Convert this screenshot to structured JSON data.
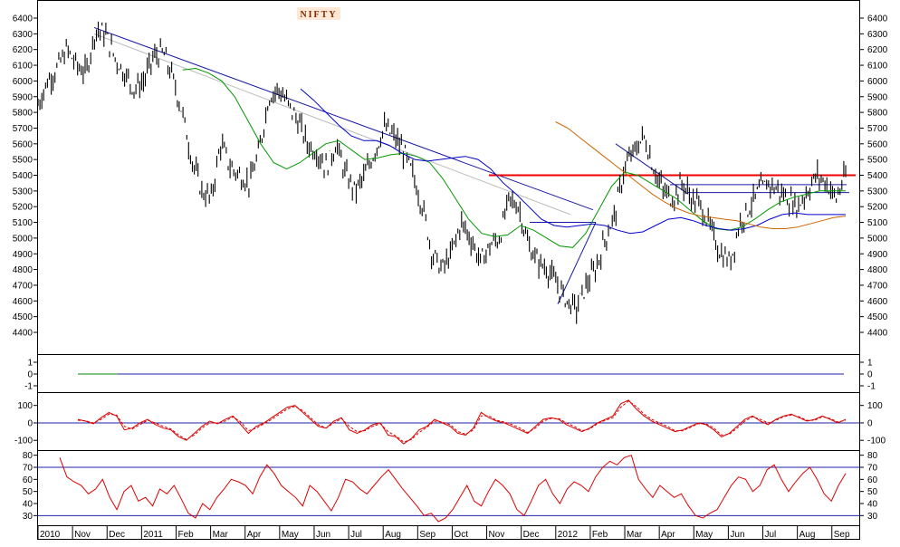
{
  "chart_data": [
    {
      "panel": "price",
      "type": "candlestick",
      "title": "NIFTY",
      "ylim": [
        4400,
        6400
      ],
      "yticks": [
        4400,
        4500,
        4600,
        4700,
        4800,
        4900,
        5000,
        5100,
        5200,
        5300,
        5400,
        5500,
        5600,
        5700,
        5800,
        5900,
        6000,
        6100,
        6200,
        6300,
        6400
      ],
      "x_month_labels": [
        "2010",
        "Nov",
        "Dec",
        "2011",
        "Feb",
        "Mar",
        "Apr",
        "May",
        "Jun",
        "Jul",
        "Aug",
        "Sep",
        "Oct",
        "Nov",
        "Dec",
        "2012",
        "Feb",
        "Mar",
        "Apr",
        "May",
        "Jun",
        "Jul",
        "Aug",
        "Sep"
      ],
      "price_path": [
        5850,
        6000,
        6080,
        6200,
        6100,
        6050,
        6330,
        6300,
        6150,
        6050,
        5950,
        6000,
        6150,
        6180,
        6020,
        5800,
        5500,
        5300,
        5250,
        5600,
        5450,
        5400,
        5350,
        5550,
        5900,
        5950,
        5850,
        5750,
        5600,
        5550,
        5450,
        5600,
        5400,
        5300,
        5400,
        5550,
        5700,
        5650,
        5550,
        5400,
        5200,
        4900,
        4800,
        4900,
        5100,
        5000,
        4850,
        4950,
        5000,
        5250,
        5200,
        4950,
        4850,
        4800,
        4700,
        4600,
        4550,
        4700,
        4800,
        5000,
        5150,
        5450,
        5550,
        5650,
        5450,
        5300,
        5250,
        5350,
        5250,
        5200,
        5050,
        4900,
        4850,
        5100,
        5200,
        5300,
        5350,
        5300,
        5250,
        5200,
        5300,
        5400,
        5350,
        5250,
        5400
      ],
      "ma_short": {
        "name": "",
        "color": "#009900",
        "values": [
          null,
          null,
          null,
          null,
          null,
          6070,
          6080,
          6050,
          6000,
          5900,
          5750,
          5600,
          5480,
          5440,
          5480,
          5540,
          5600,
          5620,
          5560,
          5500,
          5510,
          5530,
          5540,
          5520,
          5480,
          5380,
          5250,
          5120,
          5030,
          5010,
          5020,
          5080,
          5050,
          5000,
          4950,
          4940,
          5030,
          5180,
          5330,
          5420,
          5400,
          5350,
          5300,
          5250,
          5180,
          5110,
          5060,
          5050,
          5070,
          5120,
          5180,
          5230,
          5260,
          5280,
          5300,
          5300,
          5300
        ]
      },
      "ma_mid": {
        "name": "",
        "color": "#0000cc",
        "values": [
          null,
          null,
          null,
          null,
          null,
          null,
          null,
          null,
          5950,
          5880,
          5800,
          5720,
          5650,
          5620,
          5620,
          5590,
          5540,
          5500,
          5490,
          5500,
          5510,
          5520,
          5500,
          5440,
          5350,
          5280,
          5200,
          5120,
          5080,
          5070,
          5080,
          5090,
          5080,
          5050,
          5030,
          5040,
          5080,
          5120,
          5130,
          5110,
          5080,
          5060,
          5050,
          5060,
          5080,
          5120,
          5150,
          5160,
          5150,
          5150,
          5150,
          5150
        ]
      },
      "ma_long": {
        "name": "",
        "color": "#cc6600",
        "values": [
          null,
          null,
          null,
          null,
          null,
          null,
          null,
          null,
          null,
          null,
          null,
          null,
          null,
          null,
          null,
          null,
          5740,
          5700,
          5640,
          5580,
          5520,
          5460,
          5400,
          5340,
          5280,
          5230,
          5190,
          5160,
          5140,
          5130,
          5120,
          5110,
          5090,
          5070,
          5060,
          5060,
          5070,
          5090,
          5110,
          5130,
          5140
        ]
      },
      "horizontal_line": {
        "value": 5400,
        "color": "#ee0000"
      }
    },
    {
      "panel": "indicator_1",
      "type": "line",
      "ylim": [
        -1,
        1
      ],
      "yticks": [
        1,
        0,
        -1
      ],
      "zero_line": 0,
      "series": [
        {
          "name": "",
          "color": "#008800",
          "values": [
            0,
            0
          ]
        }
      ]
    },
    {
      "panel": "oscillator",
      "type": "line",
      "ylim": [
        -130,
        140
      ],
      "yticks": [
        100,
        0,
        -100
      ],
      "zero_line": 0,
      "series": [
        {
          "name": "",
          "color": "#dd0000",
          "dashed": false,
          "values": [
            20,
            10,
            -5,
            30,
            60,
            40,
            -40,
            -30,
            0,
            20,
            -10,
            -30,
            -40,
            -80,
            -100,
            -60,
            -20,
            10,
            -5,
            20,
            40,
            -10,
            -60,
            -20,
            0,
            30,
            60,
            90,
            100,
            60,
            20,
            -20,
            -30,
            10,
            30,
            -40,
            -60,
            -40,
            -10,
            0,
            -70,
            -80,
            -120,
            -90,
            -40,
            -20,
            20,
            0,
            -20,
            -60,
            -70,
            -30,
            60,
            30,
            10,
            0,
            -20,
            -40,
            -60,
            -20,
            20,
            30,
            20,
            -10,
            -30,
            -50,
            -30,
            0,
            20,
            40,
            110,
            130,
            80,
            40,
            10,
            -10,
            -30,
            -50,
            -40,
            -20,
            0,
            -10,
            -40,
            -80,
            -60,
            -20,
            20,
            40,
            10,
            -10,
            20,
            40,
            50,
            30,
            10,
            20,
            40,
            20,
            0,
            20
          ]
        },
        {
          "name": "",
          "color": "#dd0000",
          "dashed": true,
          "values": [
            15,
            12,
            0,
            20,
            50,
            45,
            -20,
            -35,
            -10,
            15,
            0,
            -20,
            -35,
            -70,
            -95,
            -70,
            -30,
            0,
            0,
            10,
            35,
            5,
            -45,
            -30,
            -5,
            20,
            50,
            80,
            95,
            70,
            30,
            -10,
            -30,
            0,
            25,
            -20,
            -50,
            -45,
            -20,
            -5,
            -50,
            -75,
            -110,
            -95,
            -55,
            -25,
            10,
            5,
            -10,
            -50,
            -65,
            -40,
            40,
            40,
            15,
            5,
            -10,
            -30,
            -55,
            -30,
            10,
            25,
            25,
            0,
            -20,
            -45,
            -35,
            -5,
            15,
            30,
            90,
            125,
            95,
            50,
            20,
            0,
            -20,
            -45,
            -45,
            -25,
            -5,
            -5,
            -30,
            -70,
            -65,
            -30,
            10,
            35,
            20,
            0,
            15,
            35,
            45,
            35,
            15,
            15,
            35,
            25,
            5,
            15
          ]
        }
      ]
    },
    {
      "panel": "rsi",
      "type": "line",
      "ylim": [
        25,
        82
      ],
      "yticks": [
        80,
        70,
        60,
        50,
        40,
        30
      ],
      "reference_lines": [
        70,
        30
      ],
      "series": [
        {
          "name": "",
          "color": "#dd0000",
          "values": [
            78,
            62,
            58,
            55,
            48,
            52,
            60,
            45,
            35,
            50,
            55,
            42,
            45,
            38,
            52,
            48,
            55,
            44,
            32,
            28,
            40,
            35,
            45,
            52,
            60,
            58,
            55,
            48,
            62,
            72,
            65,
            55,
            50,
            45,
            38,
            55,
            50,
            42,
            34,
            45,
            60,
            58,
            52,
            48,
            55,
            62,
            68,
            60,
            52,
            45,
            38,
            30,
            32,
            25,
            28,
            35,
            45,
            55,
            42,
            38,
            50,
            60,
            55,
            48,
            35,
            30,
            42,
            55,
            60,
            48,
            40,
            52,
            58,
            55,
            50,
            62,
            70,
            75,
            72,
            78,
            80,
            60,
            52,
            45,
            55,
            50,
            45,
            48,
            38,
            30,
            28,
            32,
            35,
            45,
            55,
            62,
            60,
            50,
            55,
            68,
            72,
            60,
            50,
            58,
            65,
            70,
            60,
            48,
            42,
            55,
            65
          ]
        }
      ]
    }
  ]
}
